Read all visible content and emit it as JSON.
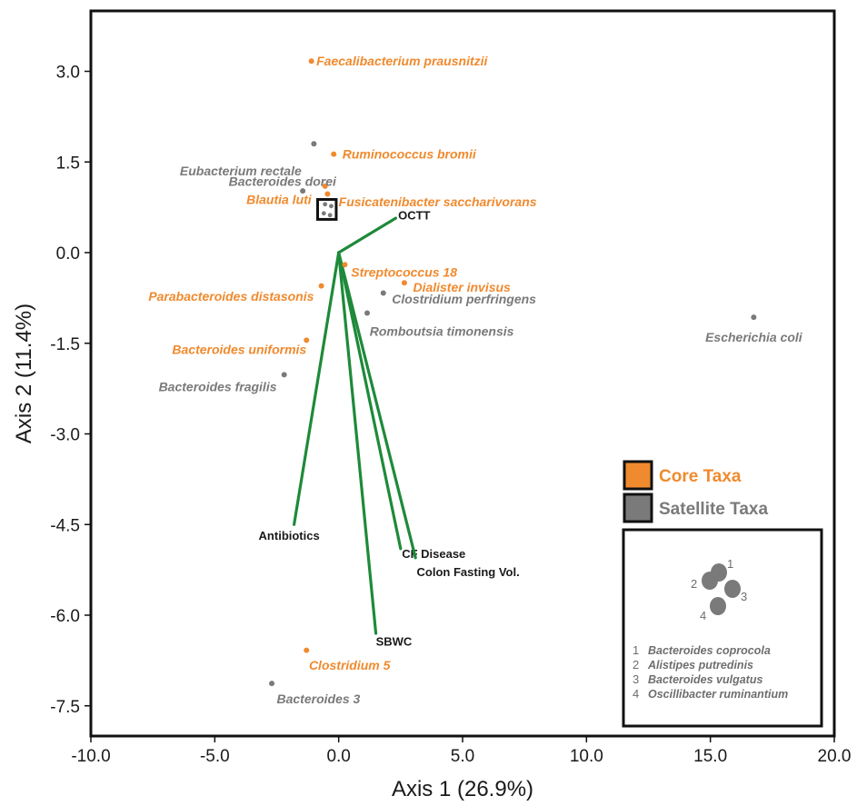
{
  "colors": {
    "core": "#f08a2e",
    "satellite": "#7a7a7a",
    "vector": "#1e8a3a",
    "frame": "#111111"
  },
  "chart_data": {
    "type": "scatter",
    "xlabel": "Axis 1 (26.9%)",
    "ylabel": "Axis 2 (11.4%)",
    "xlim": [
      -10.0,
      20.0
    ],
    "ylim": [
      -8.0,
      4.0
    ],
    "xticks": [
      -10.0,
      -5.0,
      0.0,
      5.0,
      10.0,
      15.0,
      20.0
    ],
    "xtick_labels": [
      "-10.0",
      "-5.0",
      "0.0",
      "5.0",
      "10.0",
      "15.0",
      "20.0"
    ],
    "yticks": [
      3.0,
      1.5,
      0.0,
      -1.5,
      -3.0,
      -4.5,
      -6.0,
      -7.5
    ],
    "ytick_labels": [
      "3.0",
      "1.5",
      "0.0",
      "-1.5",
      "-3.0",
      "-4.5",
      "-6.0",
      "-7.5"
    ],
    "grid": false,
    "points": [
      {
        "label": "Faecalibacterium prausnitzii",
        "x": -1.1,
        "y": 3.17,
        "group": "core",
        "anchor": "start",
        "dx": 0.2,
        "dy": 0.0
      },
      {
        "label": "Eubacterium rectale",
        "x": -1.0,
        "y": 1.8,
        "group": "satellite",
        "anchor": "end",
        "dx": -0.5,
        "dy": -0.45
      },
      {
        "label": "Ruminococcus bromii",
        "x": -0.2,
        "y": 1.63,
        "group": "core",
        "anchor": "start",
        "dx": 0.35,
        "dy": 0.0
      },
      {
        "label": "Blautia luti",
        "x": -0.55,
        "y": 1.1,
        "group": "core",
        "anchor": "end",
        "dx": -0.55,
        "dy": -0.22
      },
      {
        "label": "Fusicatenibacter saccharivorans",
        "x": -0.45,
        "y": 0.97,
        "group": "core",
        "anchor": "start",
        "dx": 0.45,
        "dy": -0.13
      },
      {
        "label": "Bacteroides dorei",
        "x": -1.45,
        "y": 1.02,
        "group": "satellite",
        "anchor": "end",
        "dx": 1.35,
        "dy": 0.16
      },
      {
        "label": "Streptococcus 18",
        "x": 0.25,
        "y": -0.2,
        "group": "core",
        "anchor": "start",
        "dx": 0.25,
        "dy": -0.12
      },
      {
        "label": "Dialister invisus",
        "x": 2.65,
        "y": -0.5,
        "group": "core",
        "anchor": "start",
        "dx": 0.35,
        "dy": -0.07
      },
      {
        "label": "Clostridium perfringens",
        "x": 1.8,
        "y": -0.67,
        "group": "satellite",
        "anchor": "start",
        "dx": 0.35,
        "dy": -0.1
      },
      {
        "label": "Parabacteroides distasonis",
        "x": -0.7,
        "y": -0.55,
        "group": "core",
        "anchor": "end",
        "dx": -0.3,
        "dy": -0.17
      },
      {
        "label": "Romboutsia timonensis",
        "x": 1.15,
        "y": -1.0,
        "group": "satellite",
        "anchor": "start",
        "dx": 0.1,
        "dy": -0.3
      },
      {
        "label": "Escherichia coli",
        "x": 16.75,
        "y": -1.07,
        "group": "satellite",
        "anchor": "middle",
        "dx": 0.0,
        "dy": -0.33
      },
      {
        "label": "Bacteroides uniformis",
        "x": -1.3,
        "y": -1.45,
        "group": "core",
        "anchor": "end",
        "dx": 0.0,
        "dy": -0.15
      },
      {
        "label": "Bacteroides fragilis",
        "x": -2.2,
        "y": -2.02,
        "group": "satellite",
        "anchor": "end",
        "dx": -0.3,
        "dy": -0.2
      },
      {
        "label": "Clostridium 5",
        "x": -1.3,
        "y": -6.58,
        "group": "core",
        "anchor": "start",
        "dx": 0.1,
        "dy": -0.25
      },
      {
        "label": "Bacteroides 3",
        "x": -2.7,
        "y": -7.13,
        "group": "satellite",
        "anchor": "start",
        "dx": 0.2,
        "dy": -0.25
      }
    ],
    "cluster": [
      {
        "x": -0.55,
        "y": 0.8,
        "group": "satellite"
      },
      {
        "x": -0.3,
        "y": 0.77,
        "group": "satellite"
      },
      {
        "x": -0.6,
        "y": 0.65,
        "group": "satellite"
      },
      {
        "x": -0.35,
        "y": 0.62,
        "group": "satellite"
      }
    ],
    "cluster_box": {
      "x0": -0.85,
      "x1": -0.1,
      "y0": 0.55,
      "y1": 0.88
    },
    "vectors": [
      {
        "label": "OCTT",
        "x": 2.3,
        "y": 0.57,
        "lx": 2.4,
        "ly": 0.55,
        "anchor": "start"
      },
      {
        "label": "Antibiotics",
        "x": -1.8,
        "y": -4.5,
        "lx": -2.0,
        "ly": -4.75,
        "anchor": "middle"
      },
      {
        "label": "CF Disease",
        "x": 2.5,
        "y": -4.9,
        "lx": 2.55,
        "ly": -5.05,
        "anchor": "start"
      },
      {
        "label": "Colon Fasting Vol.",
        "x": 3.1,
        "y": -5.05,
        "lx": 3.15,
        "ly": -5.35,
        "anchor": "start"
      },
      {
        "label": "SBWC",
        "x": 1.5,
        "y": -6.3,
        "lx": 1.5,
        "ly": -6.5,
        "anchor": "start"
      }
    ]
  },
  "legend": {
    "core_label": "Core Taxa",
    "satellite_label": "Satellite Taxa"
  },
  "inset": {
    "items": [
      {
        "num": "1",
        "name": "Bacteroides coprocola"
      },
      {
        "num": "2",
        "name": "Alistipes putredinis"
      },
      {
        "num": "3",
        "name": "Bacteroides vulgatus"
      },
      {
        "num": "4",
        "name": "Oscillibacter ruminantium"
      }
    ]
  }
}
